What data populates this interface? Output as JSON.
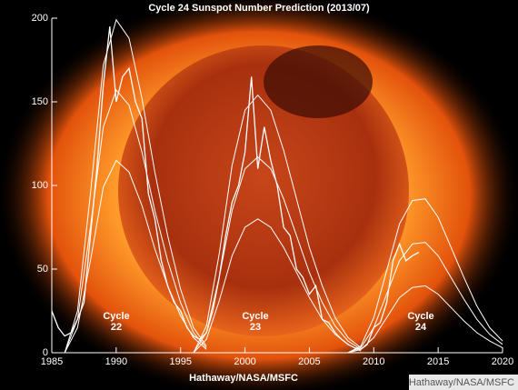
{
  "chart_data": {
    "type": "line",
    "title": "Cycle 24 Sunspot Number Prediction (2013/07)",
    "xlabel": "Hathaway/NASA/MSFC",
    "credit": "Hathaway/NASA/MSFC",
    "annotations": [
      [
        "Cycle",
        "22"
      ],
      [
        "Cycle",
        "23"
      ],
      [
        "Cycle",
        "24"
      ]
    ],
    "xlim": [
      1985,
      2020
    ],
    "xticks": [
      1985,
      1990,
      1995,
      2000,
      2005,
      2010,
      2015,
      2020
    ],
    "ylim": [
      0,
      200
    ],
    "yticks": [
      0,
      50,
      100,
      150,
      200
    ],
    "series": [
      {
        "color": "#ffffff",
        "x": [
          1985,
          1985.5,
          1986,
          1986.5,
          1987,
          1987.5,
          1988,
          1988.5,
          1989,
          1989.5,
          1990,
          1990.5,
          1991,
          1991.5,
          1992,
          1992.5,
          1993,
          1993.5,
          1994,
          1994.5,
          1995,
          1995.5,
          1996,
          1996.5,
          1997,
          1997.5,
          1998,
          1998.5,
          1999,
          1999.5,
          2000,
          2000.5,
          2001,
          2001.5,
          2002,
          2002.5,
          2003,
          2003.5,
          2004,
          2004.5,
          2005,
          2005.5,
          2006,
          2006.5,
          2007,
          2007.5,
          2008,
          2008.5,
          2009,
          2009.5,
          2010,
          2010.5,
          2011,
          2011.5,
          2012,
          2012.5,
          2013,
          2013.5
        ],
        "values": [
          25,
          15,
          10,
          12,
          20,
          30,
          70,
          110,
          160,
          195,
          150,
          165,
          170,
          150,
          140,
          95,
          80,
          55,
          40,
          30,
          25,
          15,
          10,
          8,
          12,
          25,
          45,
          70,
          90,
          100,
          120,
          165,
          110,
          135,
          115,
          100,
          75,
          70,
          50,
          45,
          35,
          40,
          20,
          18,
          12,
          8,
          5,
          3,
          2,
          5,
          15,
          18,
          30,
          55,
          65,
          55,
          58,
          60
        ]
      },
      {
        "color": "#ffffff",
        "x": [
          1986,
          1987,
          1988,
          1989,
          1990,
          1991,
          1992,
          1993,
          1994,
          1995,
          1996,
          1997
        ],
        "values": [
          0,
          25,
          95,
          172,
          199,
          188,
          152,
          108,
          70,
          38,
          15,
          4
        ]
      },
      {
        "color": "#ffffff",
        "x": [
          1986,
          1987,
          1988,
          1989,
          1990,
          1991,
          1992,
          1993,
          1994,
          1995,
          1996,
          1997
        ],
        "values": [
          0,
          20,
          75,
          135,
          157,
          148,
          120,
          85,
          55,
          30,
          12,
          3
        ]
      },
      {
        "color": "#ffffff",
        "x": [
          1986,
          1987,
          1988,
          1989,
          1990,
          1991,
          1992,
          1993,
          1994,
          1995,
          1996,
          1997
        ],
        "values": [
          0,
          15,
          55,
          99,
          115,
          108,
          88,
          62,
          40,
          22,
          9,
          2
        ]
      },
      {
        "color": "#ffffff",
        "x": [
          1996,
          1997,
          1998,
          1999,
          2000,
          2001,
          2002,
          2003,
          2004,
          2005,
          2006,
          2007,
          2008,
          2009
        ],
        "values": [
          0,
          16,
          59,
          112,
          145,
          154,
          145,
          121,
          92,
          63,
          40,
          21,
          9,
          3
        ]
      },
      {
        "color": "#ffffff",
        "x": [
          1996,
          1997,
          1998,
          1999,
          2000,
          2001,
          2002,
          2003,
          2004,
          2005,
          2006,
          2007,
          2008,
          2009
        ],
        "values": [
          0,
          12,
          45,
          85,
          110,
          117,
          110,
          92,
          70,
          48,
          30,
          16,
          7,
          2
        ]
      },
      {
        "color": "#ffffff",
        "x": [
          1996,
          1997,
          1998,
          1999,
          2000,
          2001,
          2002,
          2003,
          2004,
          2005,
          2006,
          2007,
          2008,
          2009
        ],
        "values": [
          0,
          8,
          31,
          58,
          75,
          80,
          75,
          63,
          48,
          33,
          20,
          11,
          5,
          1
        ]
      },
      {
        "color": "#ffffff",
        "x": [
          2008,
          2009,
          2010,
          2011,
          2012,
          2013,
          2014,
          2015,
          2016,
          2017,
          2018,
          2019,
          2020
        ],
        "values": [
          0,
          4,
          21,
          49,
          77,
          91,
          92,
          81,
          63,
          45,
          28,
          15,
          7
        ]
      },
      {
        "color": "#ffffff",
        "x": [
          2008,
          2009,
          2010,
          2011,
          2012,
          2013,
          2014,
          2015,
          2016,
          2017,
          2018,
          2019,
          2020
        ],
        "values": [
          0,
          3,
          15,
          35,
          55,
          65,
          66,
          58,
          45,
          32,
          20,
          11,
          5
        ]
      },
      {
        "color": "#ffffff",
        "x": [
          2008,
          2009,
          2010,
          2011,
          2012,
          2013,
          2014,
          2015,
          2016,
          2017,
          2018,
          2019,
          2020
        ],
        "values": [
          0,
          2,
          9,
          21,
          33,
          39,
          40,
          35,
          27,
          19,
          12,
          7,
          3
        ]
      }
    ]
  }
}
